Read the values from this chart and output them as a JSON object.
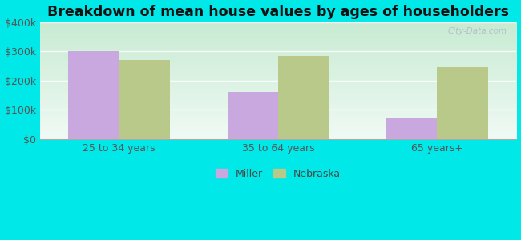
{
  "title": "Breakdown of mean house values by ages of householders",
  "categories": [
    "25 to 34 years",
    "35 to 64 years",
    "65 years+"
  ],
  "miller_values": [
    300000,
    160000,
    72000
  ],
  "nebraska_values": [
    270000,
    285000,
    245000
  ],
  "miller_color": "#c9a8e0",
  "nebraska_color": "#b8c98a",
  "background_color": "#00e8e8",
  "ylim": [
    0,
    400000
  ],
  "yticks": [
    0,
    100000,
    200000,
    300000,
    400000
  ],
  "ytick_labels": [
    "$0",
    "$100k",
    "$200k",
    "$300k",
    "$400k"
  ],
  "bar_width": 0.32,
  "legend_labels": [
    "Miller",
    "Nebraska"
  ],
  "title_fontsize": 12.5,
  "tick_fontsize": 9,
  "legend_fontsize": 9,
  "watermark": "City-Data.com",
  "plot_bg_top": "#f0faf5",
  "plot_bg_bottom": "#d8f0e0"
}
